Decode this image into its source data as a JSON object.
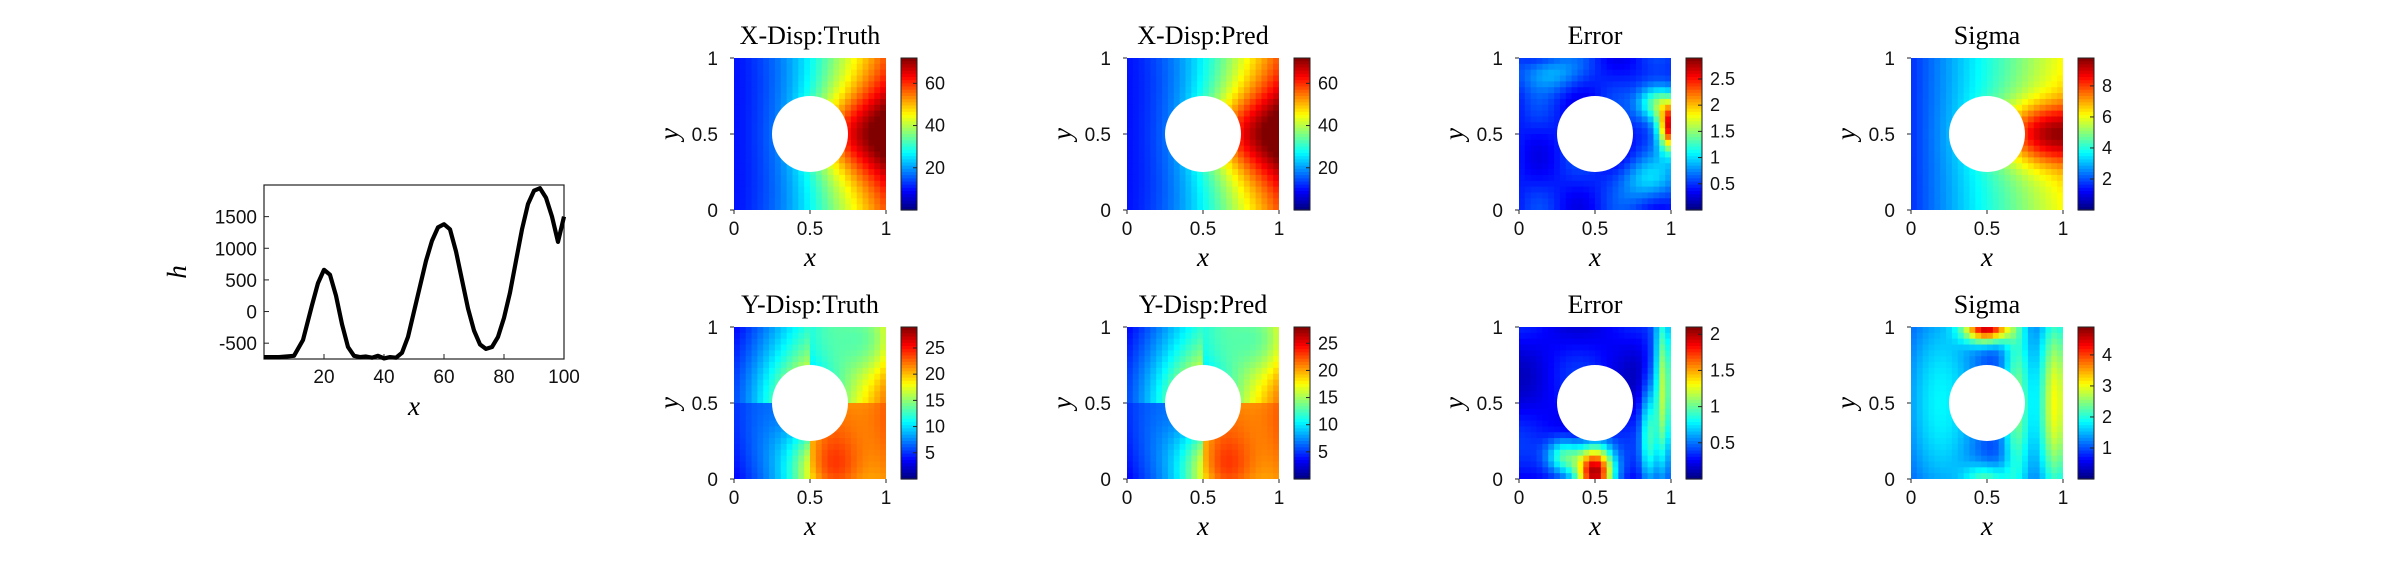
{
  "chart_data": [
    {
      "type": "line",
      "panel": "load",
      "xlabel": "x",
      "ylabel": "h",
      "xlim": [
        0,
        100
      ],
      "ylim": [
        -750,
        2000
      ],
      "xticks": [
        "20",
        "40",
        "60",
        "80",
        "100"
      ],
      "yticks": [
        "-500",
        "0",
        "500",
        "1000",
        "1500"
      ],
      "color": "#000000",
      "x": [
        0,
        5,
        10,
        13,
        16,
        18,
        20,
        22,
        24,
        26,
        28,
        30,
        32,
        34,
        36,
        38,
        40,
        42,
        44,
        46,
        48,
        50,
        52,
        54,
        56,
        58,
        60,
        62,
        64,
        66,
        68,
        70,
        72,
        74,
        76,
        78,
        80,
        82,
        84,
        86,
        88,
        90,
        92,
        94,
        96,
        98,
        100
      ],
      "y": [
        -720,
        -720,
        -700,
        -450,
        100,
        450,
        660,
        580,
        250,
        -200,
        -560,
        -700,
        -720,
        -710,
        -730,
        -700,
        -740,
        -720,
        -730,
        -650,
        -400,
        0,
        400,
        800,
        1120,
        1330,
        1380,
        1300,
        950,
        500,
        50,
        -300,
        -520,
        -590,
        -560,
        -400,
        -100,
        300,
        800,
        1300,
        1700,
        1910,
        1950,
        1800,
        1500,
        1100,
        1500
      ]
    },
    {
      "type": "heatmap",
      "title": "X-Disp:Truth",
      "xlabel": "x",
      "ylabel": "y",
      "xticks": [
        "0",
        "0.5",
        "1"
      ],
      "yticks": [
        "0",
        "0.5",
        "1"
      ],
      "colormap": "jet",
      "clim": [
        0,
        72
      ],
      "cbar_ticks": [
        20,
        40,
        60
      ],
      "field": "xdisp"
    },
    {
      "type": "heatmap",
      "title": "X-Disp:Pred",
      "xlabel": "x",
      "ylabel": "y",
      "xticks": [
        "0",
        "0.5",
        "1"
      ],
      "yticks": [
        "0",
        "0.5",
        "1"
      ],
      "colormap": "jet",
      "clim": [
        0,
        72
      ],
      "cbar_ticks": [
        20,
        40,
        60
      ],
      "field": "xdisp"
    },
    {
      "type": "heatmap",
      "title": "Error",
      "xlabel": "x",
      "ylabel": "y",
      "xticks": [
        "0",
        "0.5",
        "1"
      ],
      "yticks": [
        "0",
        "0.5",
        "1"
      ],
      "colormap": "jet",
      "clim": [
        0,
        2.9
      ],
      "cbar_ticks": [
        0.5,
        1,
        1.5,
        2,
        2.5
      ],
      "field": "xerr"
    },
    {
      "type": "heatmap",
      "title": "Sigma",
      "xlabel": "x",
      "ylabel": "y",
      "xticks": [
        "0",
        "0.5",
        "1"
      ],
      "yticks": [
        "0",
        "0.5",
        "1"
      ],
      "colormap": "jet",
      "clim": [
        0,
        9.8
      ],
      "cbar_ticks": [
        2,
        4,
        6,
        8
      ],
      "field": "xsig"
    },
    {
      "type": "heatmap",
      "title": "Y-Disp:Truth",
      "xlabel": "x",
      "ylabel": "y",
      "xticks": [
        "0",
        "0.5",
        "1"
      ],
      "yticks": [
        "0",
        "0.5",
        "1"
      ],
      "colormap": "jet",
      "clim": [
        0,
        29
      ],
      "cbar_ticks": [
        5,
        10,
        15,
        20,
        25
      ],
      "field": "ydisp"
    },
    {
      "type": "heatmap",
      "title": "Y-Disp:Pred",
      "xlabel": "x",
      "ylabel": "y",
      "xticks": [
        "0",
        "0.5",
        "1"
      ],
      "yticks": [
        "0",
        "0.5",
        "1"
      ],
      "colormap": "jet",
      "clim": [
        0,
        28
      ],
      "cbar_ticks": [
        5,
        10,
        15,
        20,
        25
      ],
      "field": "ydisp"
    },
    {
      "type": "heatmap",
      "title": "Error",
      "xlabel": "x",
      "ylabel": "y",
      "xticks": [
        "0",
        "0.5",
        "1"
      ],
      "yticks": [
        "0",
        "0.5",
        "1"
      ],
      "colormap": "jet",
      "clim": [
        0,
        2.1
      ],
      "cbar_ticks": [
        0.5,
        1,
        1.5,
        2
      ],
      "field": "yerr"
    },
    {
      "type": "heatmap",
      "title": "Sigma",
      "xlabel": "x",
      "ylabel": "y",
      "xticks": [
        "0",
        "0.5",
        "1"
      ],
      "yticks": [
        "0",
        "0.5",
        "1"
      ],
      "colormap": "jet",
      "clim": [
        0,
        4.9
      ],
      "cbar_ticks": [
        1,
        2,
        3,
        4
      ],
      "field": "ysig"
    }
  ]
}
